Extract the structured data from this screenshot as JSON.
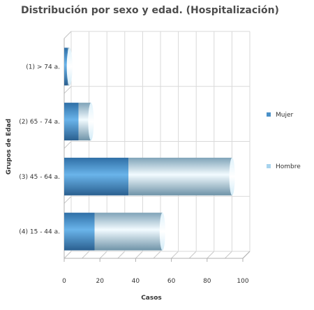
{
  "chart_data": {
    "type": "bar",
    "orientation": "horizontal",
    "stacked": true,
    "style": "3d-cylinder",
    "title": "Distribución por sexo y edad. (Hospitalización)",
    "xlabel": "Casos",
    "ylabel": "Grupos de Edad",
    "xlim": [
      0,
      100
    ],
    "xticks": [
      "0",
      "20",
      "40",
      "60",
      "80",
      "100"
    ],
    "grid": true,
    "legend_position": "right",
    "categories": [
      "(1) > 74 a.",
      "(2) 65 - 74 a.",
      "(3) 45 - 64 a.",
      "(4) 15 - 44 a."
    ],
    "series": [
      {
        "name": "Mujer",
        "values": [
          2,
          8,
          36,
          17
        ],
        "color": "#4a90c8"
      },
      {
        "name": "Hombre",
        "values": [
          1,
          7,
          58,
          38
        ],
        "color": "#a8d4ee"
      }
    ]
  }
}
